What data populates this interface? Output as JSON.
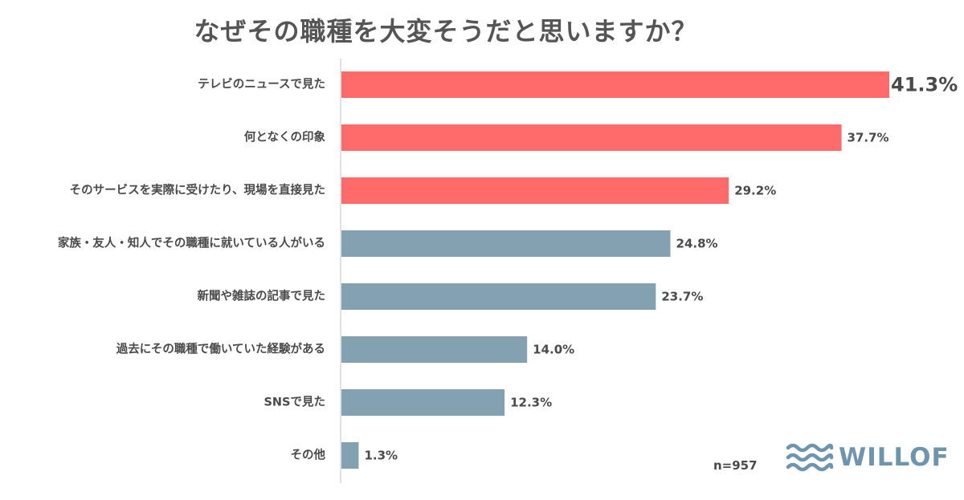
{
  "chart_data": {
    "type": "bar",
    "orientation": "horizontal",
    "title": "なぜその職種を大変そうだと思いますか？",
    "categories": [
      "テレビのニュースで見た",
      "何となくの印象",
      "そのサービスを実際に受けたり、現場を直接見た",
      "家族・友人・知人でその職種に就いている人がいる",
      "新聞や雑誌の記事で見た",
      "過去にその職種で働いていた経験がある",
      "SNSで見た",
      "その他"
    ],
    "values": [
      41.3,
      37.7,
      29.2,
      24.8,
      23.7,
      14.0,
      12.3,
      1.3
    ],
    "value_labels": [
      "41.3%",
      "37.7%",
      "29.2%",
      "24.8%",
      "23.7%",
      "14.0%",
      "12.3%",
      "1.3%"
    ],
    "xlim": [
      0,
      41.3
    ],
    "grid": false,
    "legend": "none",
    "highlight_count": 3,
    "colors": {
      "highlight": "#ff6b6b",
      "default": "#84a1b1",
      "axis": "#d9d9d9"
    }
  },
  "note": "n=957",
  "brand": {
    "name": "WILLOF",
    "icon": "wave-icon",
    "color": "#6f94ad"
  }
}
